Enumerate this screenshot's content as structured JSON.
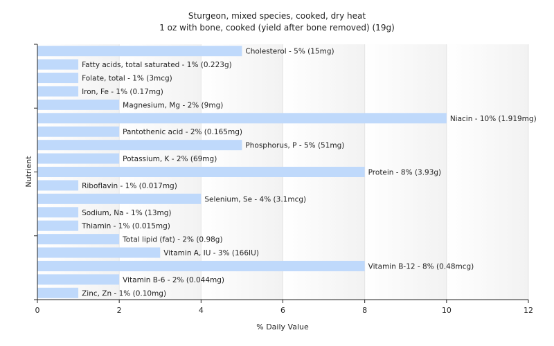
{
  "chart_data": {
    "type": "bar",
    "orientation": "horizontal",
    "title": "Sturgeon, mixed species, cooked, dry heat",
    "subtitle": "1 oz with bone, cooked (yield after bone removed) (19g)",
    "xlabel": "% Daily Value",
    "ylabel": "Nutrient",
    "xlim": [
      0,
      12
    ],
    "xticks": [
      "0",
      "2",
      "4",
      "6",
      "8",
      "10",
      "12"
    ],
    "bar_color": "#bfd9fb",
    "categories": [
      "Cholesterol",
      "Fatty acids, total saturated",
      "Folate, total",
      "Iron, Fe",
      "Magnesium, Mg",
      "Niacin",
      "Pantothenic acid",
      "Phosphorus, P",
      "Potassium, K",
      "Protein",
      "Riboflavin",
      "Selenium, Se",
      "Sodium, Na",
      "Thiamin",
      "Total lipid (fat)",
      "Vitamin A, IU",
      "Vitamin B-12",
      "Vitamin B-6",
      "Zinc, Zn"
    ],
    "values": [
      5,
      1,
      1,
      1,
      2,
      10,
      2,
      5,
      2,
      8,
      1,
      4,
      1,
      1,
      2,
      3,
      8,
      2,
      1
    ],
    "labels": [
      "Cholesterol - 5% (15mg)",
      "Fatty acids, total saturated - 1% (0.223g)",
      "Folate, total - 1% (3mcg)",
      "Iron, Fe - 1% (0.17mg)",
      "Magnesium, Mg - 2% (9mg)",
      "Niacin - 10% (1.919mg)",
      "Pantothenic acid - 2% (0.165mg)",
      "Phosphorus, P - 5% (51mg)",
      "Potassium, K - 2% (69mg)",
      "Protein - 8% (3.93g)",
      "Riboflavin - 1% (0.017mg)",
      "Selenium, Se - 4% (3.1mcg)",
      "Sodium, Na - 1% (13mg)",
      "Thiamin - 1% (0.015mg)",
      "Total lipid (fat) - 2% (0.98g)",
      "Vitamin A, IU - 3% (166IU)",
      "Vitamin B-12 - 8% (0.48mcg)",
      "Vitamin B-6 - 2% (0.044mg)",
      "Zinc, Zn - 1% (0.10mg)"
    ],
    "grid": true,
    "legend": "none"
  }
}
